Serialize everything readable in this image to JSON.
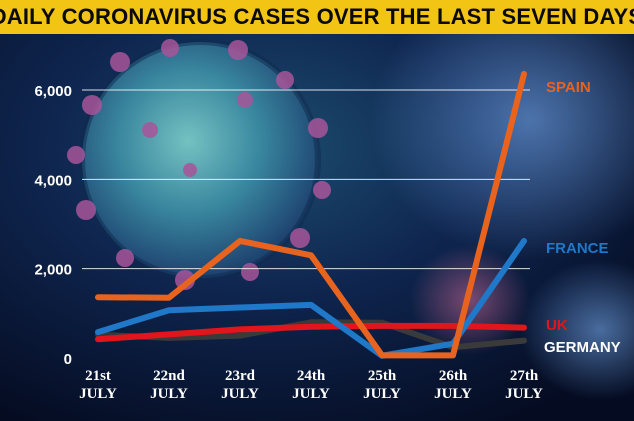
{
  "title": "DAILY CORONAVIRUS CASES OVER THE LAST SEVEN DAYS",
  "colors": {
    "title_bg": "#f2c414",
    "spain": "#e8641e",
    "france": "#1f78c8",
    "uk": "#e0161c",
    "germany": "#3a3a3a",
    "grid": "#ffffff"
  },
  "chart_data": {
    "type": "line",
    "title": "DAILY CORONAVIRUS CASES OVER THE LAST SEVEN DAYS",
    "xlabel": "",
    "ylabel": "",
    "categories": [
      [
        "21st",
        "JULY"
      ],
      [
        "22nd",
        "JULY"
      ],
      [
        "23rd",
        "JULY"
      ],
      [
        "24th",
        "JULY"
      ],
      [
        "25th",
        "JULY"
      ],
      [
        "26th",
        "JULY"
      ],
      [
        "27th",
        "JULY"
      ]
    ],
    "ylim": [
      0,
      6300
    ],
    "yticks": [
      0,
      2000,
      4000,
      6000
    ],
    "ytick_labels": [
      "0",
      "2,000",
      "4,000",
      "6,000"
    ],
    "grid": true,
    "series": [
      {
        "name": "SPAIN",
        "color": "#e8641e",
        "values": [
          1360,
          1350,
          2620,
          2300,
          60,
          60,
          6360
        ]
      },
      {
        "name": "FRANCE",
        "color": "#1f78c8",
        "values": [
          580,
          1070,
          1130,
          1190,
          50,
          320,
          2620
        ]
      },
      {
        "name": "UK",
        "color": "#e0161c",
        "values": [
          420,
          530,
          640,
          700,
          720,
          720,
          680
        ]
      },
      {
        "name": "GERMANY",
        "color": "#3a3a3a",
        "values": [
          520,
          450,
          500,
          800,
          790,
          240,
          390
        ]
      }
    ]
  }
}
